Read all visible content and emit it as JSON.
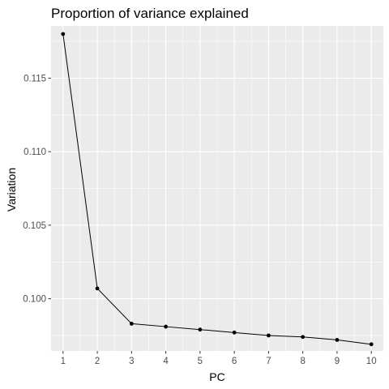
{
  "chart_data": {
    "type": "line",
    "title": "Proportion of variance explained",
    "xlabel": "PC",
    "ylabel": "Variation",
    "x": [
      1,
      2,
      3,
      4,
      5,
      6,
      7,
      8,
      9,
      10
    ],
    "y": [
      0.118,
      0.1007,
      0.0983,
      0.0981,
      0.0979,
      0.0977,
      0.0975,
      0.0974,
      0.0972,
      0.0969
    ],
    "xlim": [
      0.65,
      10.35
    ],
    "ylim": [
      0.09645,
      0.11855
    ],
    "xticks": [
      1,
      2,
      3,
      4,
      5,
      6,
      7,
      8,
      9,
      10
    ],
    "yticks": [
      0.1,
      0.105,
      0.11,
      0.115
    ],
    "ytick_labels": [
      "0.100",
      "0.105",
      "0.110",
      "0.115"
    ],
    "grid": true,
    "colors": {
      "panel": "#ebebeb",
      "grid": "#ffffff",
      "line": "#000000",
      "point": "#000000",
      "tick_text": "#4d4d4d",
      "tick_mark": "#333333"
    }
  }
}
